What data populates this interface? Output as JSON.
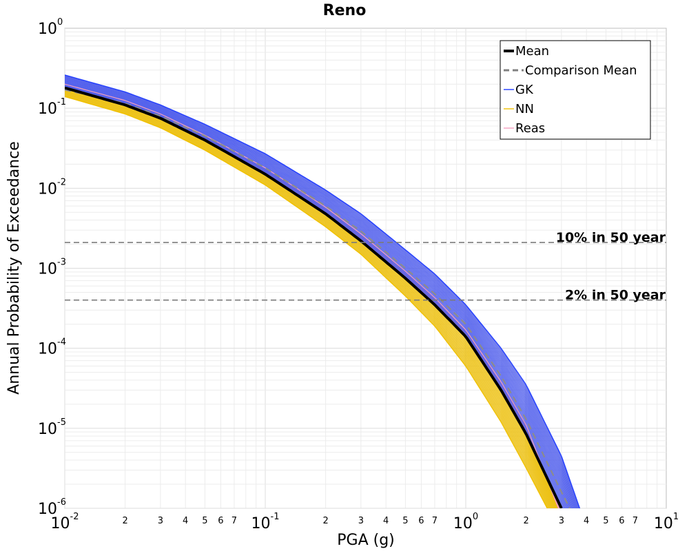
{
  "chart_data": {
    "type": "line",
    "title": "Reno",
    "xlabel": "PGA (g)",
    "ylabel": "Annual Probability of Exceedance",
    "xscale": "log",
    "yscale": "log",
    "xlim": [
      0.01,
      10
    ],
    "ylim": [
      1e-06,
      1
    ],
    "grid": true,
    "legend_position": "top-right",
    "x_major_ticks": [
      {
        "base": "10",
        "exp": "-2",
        "value": 0.01
      },
      {
        "base": "10",
        "exp": "-1",
        "value": 0.1
      },
      {
        "base": "10",
        "exp": "0",
        "value": 1
      },
      {
        "base": "10",
        "exp": "1",
        "value": 10
      }
    ],
    "x_minor_tick_labels": [
      "2",
      "3",
      "4",
      "5",
      "6",
      "7"
    ],
    "y_major_ticks": [
      {
        "base": "10",
        "exp": "0",
        "value": 1
      },
      {
        "base": "10",
        "exp": "-1",
        "value": 0.1
      },
      {
        "base": "10",
        "exp": "-2",
        "value": 0.01
      },
      {
        "base": "10",
        "exp": "-3",
        "value": 0.001
      },
      {
        "base": "10",
        "exp": "-4",
        "value": 0.0001
      },
      {
        "base": "10",
        "exp": "-5",
        "value": 1e-05
      },
      {
        "base": "10",
        "exp": "-6",
        "value": 1e-06
      }
    ],
    "reference_lines": [
      {
        "label": "10% in 50 year",
        "y": 0.0021
      },
      {
        "label": "2% in 50 year",
        "y": 0.0004
      }
    ],
    "series": [
      {
        "name": "Mean",
        "color": "#000000",
        "style": "solid",
        "x": [
          0.01,
          0.02,
          0.03,
          0.05,
          0.1,
          0.2,
          0.3,
          0.5,
          0.7,
          1.0,
          1.5,
          2.0,
          3.0
        ],
        "y": [
          0.18,
          0.11,
          0.075,
          0.04,
          0.015,
          0.0048,
          0.0022,
          0.00075,
          0.00035,
          0.00014,
          3e-05,
          8.5e-06,
          1e-06
        ]
      },
      {
        "name": "Comparison Mean",
        "color": "#808080",
        "style": "dashed",
        "x": [
          0.01,
          0.02,
          0.03,
          0.05,
          0.1,
          0.2,
          0.3,
          0.5,
          0.7,
          1.0,
          1.5,
          2.0,
          3.0,
          3.3
        ],
        "y": [
          0.17,
          0.115,
          0.08,
          0.045,
          0.018,
          0.006,
          0.0029,
          0.001,
          0.00048,
          0.0002,
          4.5e-05,
          1.3e-05,
          1.6e-06,
          1e-06
        ]
      },
      {
        "name": "GK",
        "color": "#1f3cff",
        "style": "solid",
        "x": [
          0.01,
          0.02,
          0.03,
          0.05,
          0.1,
          0.2,
          0.3,
          0.5,
          0.7,
          1.0,
          1.5,
          2.0,
          3.0,
          3.7
        ],
        "y": [
          0.26,
          0.16,
          0.11,
          0.063,
          0.027,
          0.0095,
          0.0048,
          0.0017,
          0.00085,
          0.00035,
          0.0001,
          3.5e-05,
          4.5e-06,
          1e-06
        ]
      },
      {
        "name": "NN",
        "color": "#f0c000",
        "style": "solid",
        "x": [
          0.01,
          0.02,
          0.03,
          0.05,
          0.1,
          0.2,
          0.3,
          0.5,
          0.7,
          1.0,
          1.5,
          2.0,
          2.55
        ],
        "y": [
          0.14,
          0.085,
          0.057,
          0.03,
          0.011,
          0.0033,
          0.0015,
          0.00045,
          0.00019,
          6e-05,
          1.2e-05,
          3.2e-06,
          1e-06
        ]
      },
      {
        "name": "Reas",
        "color": "#f4a0c0",
        "style": "solid",
        "x": [
          0.01,
          0.02,
          0.03,
          0.05,
          0.1,
          0.2,
          0.3,
          0.5,
          0.7,
          1.0,
          1.5,
          2.0,
          2.9
        ],
        "y": [
          0.2,
          0.125,
          0.085,
          0.046,
          0.018,
          0.0058,
          0.0027,
          0.00092,
          0.00043,
          0.00017,
          3.8e-05,
          1.1e-05,
          1e-06
        ]
      }
    ]
  }
}
